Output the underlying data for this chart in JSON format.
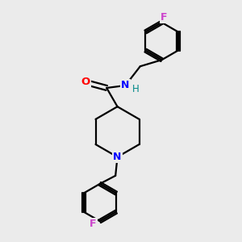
{
  "background_color": "#ebebeb",
  "bond_color": "#000000",
  "N_color": "#0000ff",
  "O_color": "#ff0000",
  "F_color": "#cc44cc",
  "H_color": "#008888",
  "line_width": 1.6,
  "figsize": [
    3.0,
    3.0
  ],
  "dpi": 100,
  "xlim": [
    0,
    10
  ],
  "ylim": [
    0,
    10
  ]
}
